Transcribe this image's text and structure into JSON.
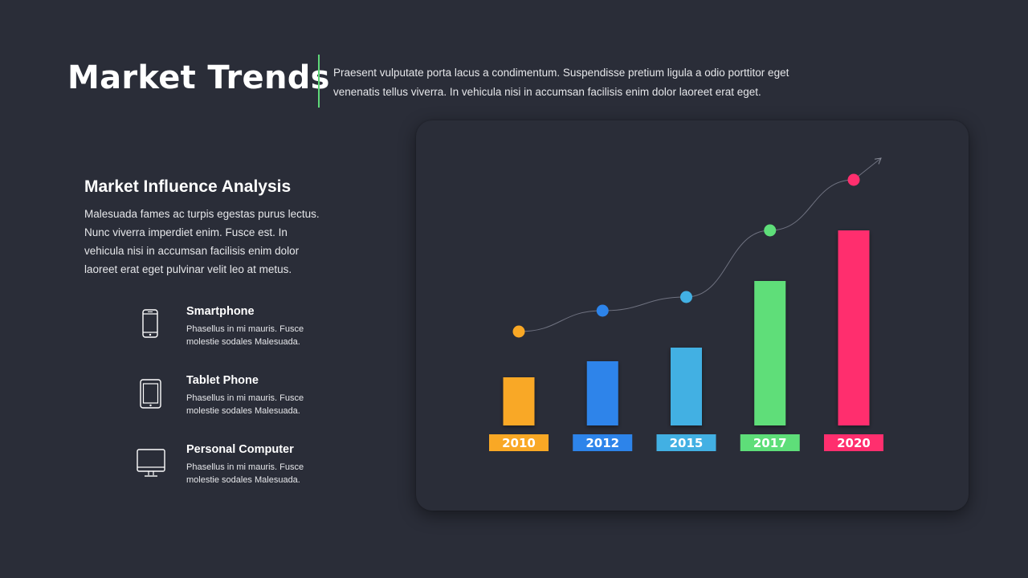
{
  "header": {
    "title": "Market Trends",
    "intro_line1": "Praesent vulputate porta lacus a condimentum. Suspendisse pretium ligula a odio porttitor eget",
    "intro_line2": "venenatis tellus viverra. In vehicula nisi in accumsan facilisis enim dolor laoreet erat eget."
  },
  "analysis": {
    "title": "Market Influence Analysis",
    "lines": [
      "Malesuada fames ac turpis egestas purus lectus.",
      "Nunc viverra imperdiet enim. Fusce est. In",
      "vehicula nisi in accumsan facilisis enim dolor",
      "laoreet erat eget pulvinar velit leo at metus."
    ]
  },
  "devices": [
    {
      "name": "Smartphone",
      "icon": "smartphone-icon",
      "desc1": "Phasellus in mi mauris. Fusce",
      "desc2": "molestie sodales Malesuada."
    },
    {
      "name": "Tablet Phone",
      "icon": "tablet-icon",
      "desc1": "Phasellus in mi mauris. Fusce",
      "desc2": "molestie sodales Malesuada."
    },
    {
      "name": "Personal Computer",
      "icon": "monitor-icon",
      "desc1": "Phasellus in mi mauris. Fusce",
      "desc2": "molestie sodales Malesuada."
    }
  ],
  "colors": {
    "background": "#2a2d38",
    "accent_divider": "#5ed879"
  },
  "chart_data": {
    "type": "bar",
    "categories": [
      "2010",
      "2012",
      "2015",
      "2017",
      "2020"
    ],
    "values": [
      60,
      80,
      97,
      180,
      243
    ],
    "trend_points": [
      117,
      143,
      160,
      243,
      306
    ],
    "colors": [
      "#f9a825",
      "#2d84ea",
      "#42b0e3",
      "#5ede79",
      "#ff2f6e"
    ],
    "title": "",
    "xlabel": "",
    "ylabel": "",
    "ylim": [
      0,
      340
    ],
    "grid": false,
    "legend": "none"
  }
}
